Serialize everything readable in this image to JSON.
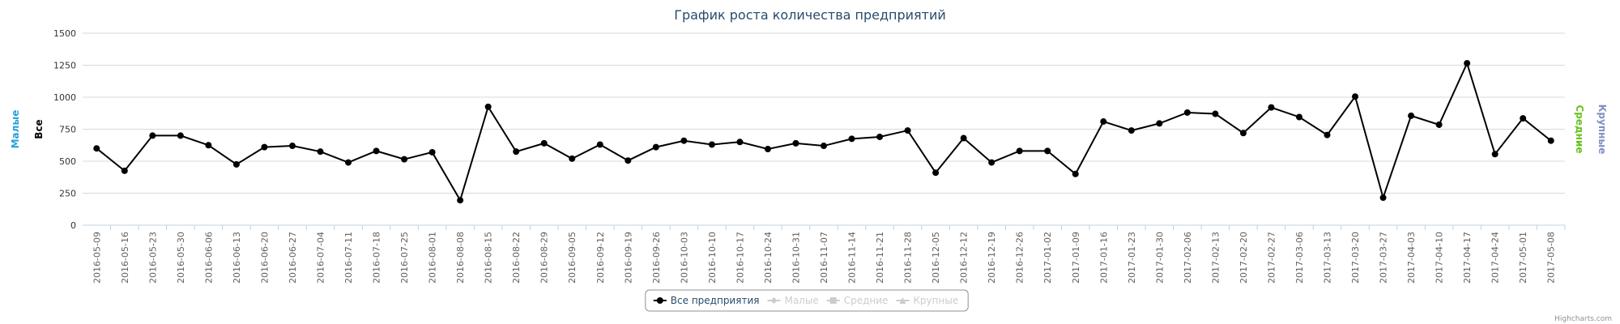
{
  "chart_data": {
    "type": "line",
    "title": "График роста количества предприятий",
    "categories": [
      "2016-05-09",
      "2016-05-16",
      "2016-05-23",
      "2016-05-30",
      "2016-06-06",
      "2016-06-13",
      "2016-06-20",
      "2016-06-27",
      "2016-07-04",
      "2016-07-11",
      "2016-07-18",
      "2016-07-25",
      "2016-08-01",
      "2016-08-08",
      "2016-08-15",
      "2016-08-22",
      "2016-08-29",
      "2016-09-05",
      "2016-09-12",
      "2016-09-19",
      "2016-09-26",
      "2016-10-03",
      "2016-10-10",
      "2016-10-17",
      "2016-10-24",
      "2016-10-31",
      "2016-11-07",
      "2016-11-14",
      "2016-11-21",
      "2016-11-28",
      "2016-12-05",
      "2016-12-12",
      "2016-12-19",
      "2016-12-26",
      "2017-01-02",
      "2017-01-09",
      "2017-01-16",
      "2017-01-23",
      "2017-01-30",
      "2017-02-06",
      "2017-02-13",
      "2017-02-20",
      "2017-02-27",
      "2017-03-06",
      "2017-03-13",
      "2017-03-20",
      "2017-03-27",
      "2017-04-03",
      "2017-04-10",
      "2017-04-17",
      "2017-04-24",
      "2017-05-01",
      "2017-05-08"
    ],
    "series": [
      {
        "name": "Все предприятия",
        "color": "#000000",
        "marker": "circle",
        "visible": true,
        "values": [
          600,
          425,
          700,
          700,
          625,
          475,
          610,
          620,
          575,
          490,
          580,
          515,
          570,
          195,
          925,
          575,
          640,
          520,
          630,
          505,
          610,
          660,
          630,
          650,
          595,
          640,
          620,
          675,
          690,
          740,
          410,
          680,
          490,
          580,
          580,
          400,
          810,
          740,
          795,
          880,
          870,
          720,
          920,
          845,
          705,
          1005,
          215,
          855,
          785,
          1265,
          555,
          835,
          660
        ]
      },
      {
        "name": "Малые",
        "color": "#2b9fd8",
        "marker": "diamond",
        "visible": false
      },
      {
        "name": "Средние",
        "color": "#66c21a",
        "marker": "square",
        "visible": false
      },
      {
        "name": "Крупные",
        "color": "#7f8fc4",
        "marker": "triangle",
        "visible": false
      }
    ],
    "axis_titles": [
      {
        "text": "Малые",
        "color": "#2b9fd8",
        "side": "left"
      },
      {
        "text": "Все",
        "color": "#000000",
        "side": "left"
      },
      {
        "text": "Средние",
        "color": "#66c21a",
        "side": "right"
      },
      {
        "text": "Крупные",
        "color": "#7f8fc4",
        "side": "right"
      }
    ],
    "ylim": [
      0,
      1500
    ],
    "yticks": [
      0,
      250,
      500,
      750,
      1000,
      1250,
      1500
    ],
    "grid": true,
    "legend_position": "bottom",
    "credits": "Highcharts.com"
  }
}
